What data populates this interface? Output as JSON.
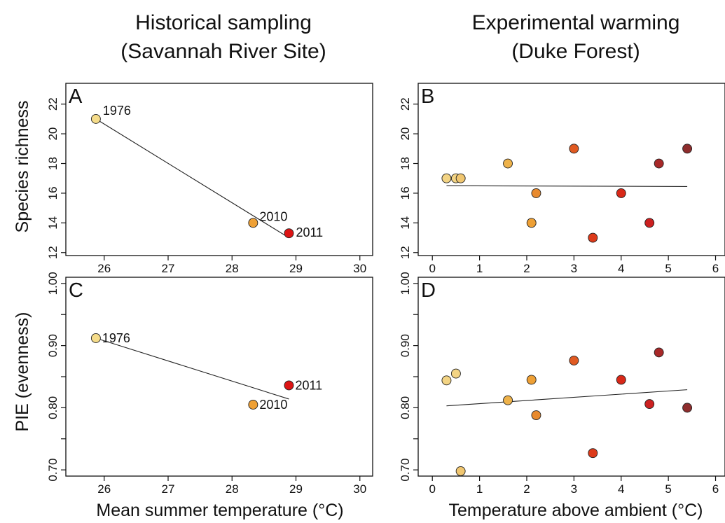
{
  "column_titles": {
    "left_line1": "Historical sampling",
    "left_line2": "(Savannah River Site)",
    "right_line1": "Experimental warming",
    "right_line2": "(Duke Forest)"
  },
  "axis_labels": {
    "y_top": "Species richness",
    "y_bottom": "PIE (evenness)",
    "x_left": "Mean summer temperature (°C)",
    "x_right": "Temperature above ambient (°C)"
  },
  "chart_data": [
    {
      "panel": "A",
      "type": "scatter",
      "xlim": [
        25.4,
        30.2
      ],
      "ylim": [
        11.8,
        23.4
      ],
      "xticks": [
        26,
        27,
        28,
        29,
        30
      ],
      "yticks": [
        12,
        14,
        16,
        18,
        20,
        22
      ],
      "ytick_labels": [
        "12",
        "14",
        "16",
        "18",
        "20",
        "22"
      ],
      "points": [
        {
          "x": 25.87,
          "y": 21.0,
          "label": "1976",
          "color": "#f5dc8a"
        },
        {
          "x": 28.33,
          "y": 14.0,
          "label": "2010",
          "color": "#eea035"
        },
        {
          "x": 28.89,
          "y": 13.3,
          "label": "2011",
          "color": "#dc1414"
        }
      ],
      "fit": [
        [
          25.87,
          21.0
        ],
        [
          28.89,
          13.0
        ]
      ]
    },
    {
      "panel": "B",
      "type": "scatter",
      "xlim": [
        -0.3,
        6.2
      ],
      "ylim": [
        11.8,
        23.4
      ],
      "xticks": [
        0,
        1,
        2,
        3,
        4,
        5,
        6
      ],
      "yticks": [
        12,
        14,
        16,
        18,
        20,
        22
      ],
      "ytick_labels": [
        "12",
        "14",
        "16",
        "18",
        "20",
        "22"
      ],
      "points": [
        {
          "x": 0.3,
          "y": 17,
          "color": "#f3d484"
        },
        {
          "x": 0.5,
          "y": 17,
          "color": "#f3d484"
        },
        {
          "x": 0.6,
          "y": 17,
          "color": "#f0c670"
        },
        {
          "x": 1.6,
          "y": 18,
          "color": "#eeb24a"
        },
        {
          "x": 2.1,
          "y": 14,
          "color": "#eea035"
        },
        {
          "x": 2.2,
          "y": 16,
          "color": "#e88a2e"
        },
        {
          "x": 3.0,
          "y": 19,
          "color": "#e05a22"
        },
        {
          "x": 3.4,
          "y": 13,
          "color": "#dc3a1a"
        },
        {
          "x": 4.0,
          "y": 16,
          "color": "#d82818"
        },
        {
          "x": 4.6,
          "y": 14,
          "color": "#cc2020"
        },
        {
          "x": 4.8,
          "y": 18,
          "color": "#a82828"
        },
        {
          "x": 5.4,
          "y": 19,
          "color": "#8e2d2d"
        }
      ],
      "fit": [
        [
          0.3,
          16.5
        ],
        [
          5.4,
          16.45
        ]
      ]
    },
    {
      "panel": "C",
      "type": "scatter",
      "xlim": [
        25.4,
        30.2
      ],
      "ylim": [
        0.69,
        1.01
      ],
      "xticks": [
        26,
        27,
        28,
        29,
        30
      ],
      "yticks": [
        0.7,
        0.8,
        0.9,
        1.0
      ],
      "ytick_labels": [
        "0.70",
        "0.80",
        "0.90",
        "1.00"
      ],
      "minor_yticks": [
        0.75,
        0.85,
        0.95
      ],
      "points": [
        {
          "x": 25.87,
          "y": 0.912,
          "label": "1976",
          "color": "#f5dc8a"
        },
        {
          "x": 28.33,
          "y": 0.805,
          "label": "2010",
          "color": "#eea035"
        },
        {
          "x": 28.89,
          "y": 0.836,
          "label": "2011",
          "color": "#dc1414"
        }
      ],
      "fit": [
        [
          25.87,
          0.912
        ],
        [
          28.89,
          0.814
        ]
      ]
    },
    {
      "panel": "D",
      "type": "scatter",
      "xlim": [
        -0.3,
        6.2
      ],
      "ylim": [
        0.69,
        1.01
      ],
      "xticks": [
        0,
        1,
        2,
        3,
        4,
        5,
        6
      ],
      "yticks": [
        0.7,
        0.8,
        0.9,
        1.0
      ],
      "ytick_labels": [
        "0.70",
        "0.80",
        "0.90",
        "1.00"
      ],
      "minor_yticks": [
        0.75,
        0.85,
        0.95
      ],
      "points": [
        {
          "x": 0.3,
          "y": 0.844,
          "color": "#f3d484"
        },
        {
          "x": 0.5,
          "y": 0.855,
          "color": "#f3d484"
        },
        {
          "x": 0.6,
          "y": 0.698,
          "color": "#f0c670"
        },
        {
          "x": 1.6,
          "y": 0.812,
          "color": "#eeb24a"
        },
        {
          "x": 2.1,
          "y": 0.845,
          "color": "#eea035"
        },
        {
          "x": 2.2,
          "y": 0.788,
          "color": "#e88a2e"
        },
        {
          "x": 3.0,
          "y": 0.876,
          "color": "#e05a22"
        },
        {
          "x": 3.4,
          "y": 0.727,
          "color": "#dc3a1a"
        },
        {
          "x": 4.0,
          "y": 0.845,
          "color": "#d82818"
        },
        {
          "x": 4.6,
          "y": 0.806,
          "color": "#cc2020"
        },
        {
          "x": 4.8,
          "y": 0.889,
          "color": "#a82828"
        },
        {
          "x": 5.4,
          "y": 0.8,
          "color": "#8e2d2d"
        }
      ],
      "fit": [
        [
          0.3,
          0.803
        ],
        [
          5.4,
          0.829
        ]
      ]
    }
  ]
}
